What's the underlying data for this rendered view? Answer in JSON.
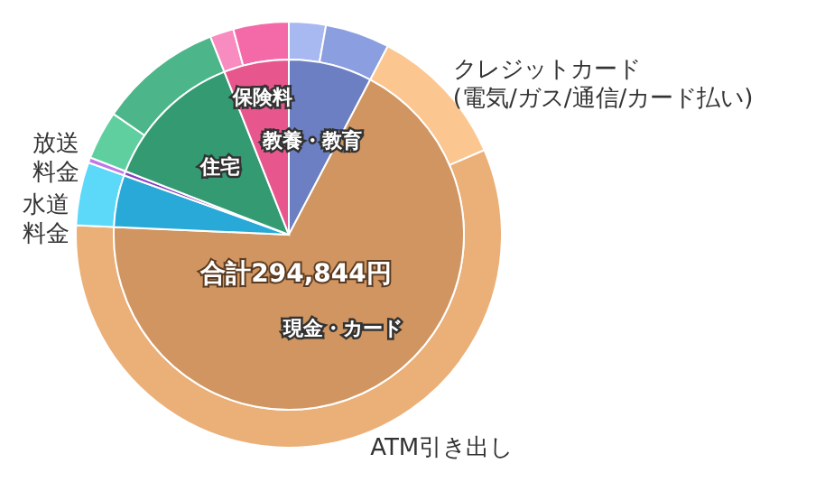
{
  "chart_data": [
    {
      "type": "pie",
      "categories": [
        "教養・教育",
        "現金・カード",
        null,
        null,
        "住宅",
        "保険料"
      ],
      "values": [
        7.7,
        68.0,
        4.8,
        0.4,
        13.1,
        6.0
      ],
      "colors": [
        "#6b7fc2",
        "#d09560",
        "#29a9d8",
        "#8a3fbf",
        "#339a72",
        "#e8568e"
      ],
      "annotations": [
        "合計294,844円"
      ],
      "legend": false
    },
    {
      "type": "donut",
      "categories": [
        null,
        null,
        "クレジットカード(電気/ガス/通信/カード払い)",
        "ATM引き出し",
        "水道料金",
        "放送料金",
        null,
        null,
        null,
        null
      ],
      "values": [
        2.8,
        4.9,
        10.8,
        57.2,
        4.8,
        0.4,
        3.7,
        9.4,
        1.8,
        4.2
      ],
      "colors": [
        "#a8b8f0",
        "#8a9ee0",
        "#fcc690",
        "#ebaf78",
        "#5cd8f8",
        "#c078e8",
        "#60cfa0",
        "#4cb68a",
        "#f88cc0",
        "#f46aa8"
      ],
      "legend": false
    }
  ]
}
